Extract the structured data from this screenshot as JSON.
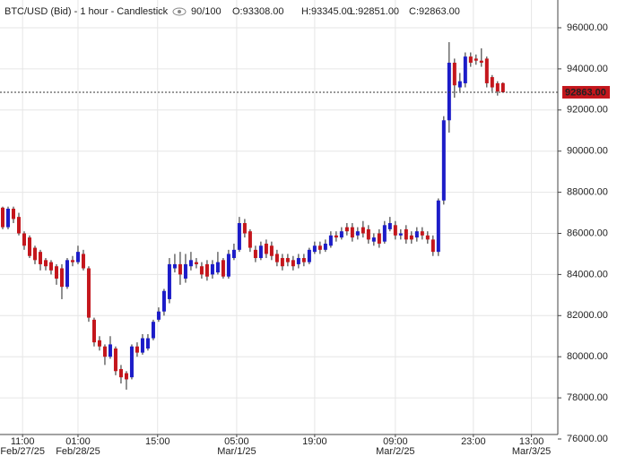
{
  "chart_data": {
    "type": "candlestick",
    "header": {
      "title": "BTC/USD (Bid) - 1 hour - Candlestick",
      "zoom": "90/100",
      "open": "O:93308.00",
      "high": "H:93345.00",
      "low": "L:92851.00",
      "close": "C:92863.00"
    },
    "x": [
      0,
      1,
      2,
      3,
      4,
      5,
      6,
      7,
      8,
      9,
      10,
      11,
      12,
      13,
      14,
      15,
      16,
      17,
      18,
      19,
      20,
      21,
      22,
      23,
      24,
      25,
      26,
      27,
      28,
      29,
      30,
      31,
      32,
      33,
      34,
      35,
      36,
      37,
      38,
      39,
      40,
      41,
      42,
      43,
      44,
      45,
      46,
      47,
      48,
      49,
      50,
      51,
      52,
      53,
      54,
      55,
      56,
      57,
      58,
      59,
      60,
      61,
      62,
      63,
      64,
      65,
      66,
      67,
      68,
      69,
      70,
      71,
      72,
      73,
      74,
      75,
      76,
      77,
      78,
      79,
      80,
      81,
      82,
      83,
      84,
      85,
      86,
      87,
      88,
      89,
      90,
      91,
      92,
      93
    ],
    "open": [
      87250,
      86300,
      87200,
      86800,
      86000,
      85800,
      85300,
      85100,
      84700,
      84600,
      84400,
      84300,
      83400,
      84700,
      84600,
      85000,
      84300,
      81800,
      80800,
      80500,
      80000,
      80400,
      79400,
      79200,
      79000,
      80500,
      80200,
      80400,
      80900,
      81800,
      82200,
      82800,
      84300,
      84500,
      83800,
      84400,
      84600,
      84400,
      84500,
      84000,
      84100,
      84700,
      83900,
      84800,
      85200,
      86500,
      86100,
      85200,
      84800,
      85500,
      85400,
      85000,
      84800,
      84800,
      84700,
      84500,
      84800,
      84600,
      85100,
      85400,
      85200,
      85400,
      85900,
      85800,
      86300,
      86300,
      85900,
      86300,
      86200,
      85600,
      86000,
      85600,
      86200,
      86400,
      85900,
      86200,
      85900,
      85800,
      86100,
      85900,
      85700,
      85100,
      87600,
      91500,
      94300,
      93100,
      93300,
      94600,
      94500,
      94400,
      94500,
      93600,
      93300,
      93308
    ],
    "high": [
      87300,
      87300,
      87300,
      87000,
      86100,
      85900,
      85400,
      85200,
      84800,
      84700,
      84500,
      84500,
      84800,
      84900,
      85400,
      85200,
      84400,
      81900,
      81000,
      80600,
      81000,
      80500,
      79600,
      79300,
      80600,
      80700,
      81100,
      81100,
      81800,
      82400,
      83300,
      84800,
      85000,
      85100,
      85000,
      85100,
      84800,
      84600,
      84700,
      84700,
      85100,
      84800,
      85200,
      85500,
      86800,
      86700,
      86200,
      85400,
      85600,
      85700,
      85600,
      85200,
      85000,
      85000,
      84900,
      85000,
      85000,
      85300,
      85600,
      85600,
      85700,
      86100,
      86100,
      86300,
      86500,
      86500,
      86300,
      86600,
      86400,
      86000,
      86200,
      86600,
      86800,
      86600,
      86200,
      86400,
      86100,
      86300,
      86300,
      86100,
      85900,
      87700,
      91700,
      95300,
      94500,
      93800,
      94800,
      94800,
      94700,
      95000,
      94600,
      93700,
      93400,
      93345
    ],
    "low": [
      86200,
      86200,
      86500,
      85900,
      85200,
      84800,
      84500,
      84200,
      84200,
      84000,
      83500,
      82800,
      83300,
      84400,
      84500,
      84200,
      81700,
      80500,
      80300,
      79600,
      79900,
      79100,
      78700,
      78400,
      78900,
      80000,
      80100,
      80300,
      80800,
      81700,
      82000,
      82600,
      84100,
      83500,
      83600,
      84200,
      84300,
      83800,
      83700,
      83800,
      84000,
      83800,
      83800,
      84700,
      85100,
      85800,
      85100,
      84600,
      84700,
      84800,
      84700,
      84400,
      84200,
      84400,
      84200,
      84300,
      84400,
      84500,
      85000,
      85000,
      85100,
      85300,
      85600,
      85700,
      85900,
      85600,
      85700,
      85800,
      85500,
      85400,
      85300,
      85500,
      86100,
      85700,
      85700,
      85500,
      85500,
      85600,
      85700,
      85500,
      84900,
      84900,
      87400,
      90900,
      92600,
      92900,
      93100,
      94100,
      94200,
      94100,
      93100,
      92900,
      92700,
      92851
    ],
    "close": [
      86300,
      87200,
      86700,
      86000,
      85400,
      84900,
      84700,
      84500,
      84400,
      84200,
      83800,
      83400,
      84700,
      84600,
      85100,
      84300,
      81900,
      80700,
      80500,
      80000,
      80600,
      79300,
      79000,
      78900,
      80500,
      80200,
      80900,
      80900,
      81700,
      82200,
      83200,
      84500,
      84500,
      84000,
      84500,
      84700,
      84500,
      84000,
      83900,
      84500,
      84600,
      83900,
      85000,
      85200,
      86500,
      86000,
      85300,
      84800,
      85400,
      85000,
      84900,
      84600,
      84400,
      84600,
      84400,
      84800,
      84600,
      85200,
      85400,
      85200,
      85500,
      85900,
      85800,
      86100,
      86100,
      85800,
      86100,
      86000,
      85700,
      85800,
      85500,
      86400,
      86500,
      85900,
      86000,
      85700,
      85700,
      86100,
      85900,
      85700,
      85100,
      87600,
      91500,
      94300,
      93200,
      93400,
      94600,
      94300,
      94400,
      94300,
      93300,
      93100,
      92900,
      92863
    ],
    "up_color": "#1c1cc8",
    "down_color": "#c4161c",
    "xlim": [
      -0.5,
      103.2
    ],
    "xticks": [
      {
        "value": 3.7,
        "label": "11:00",
        "date": "Feb/27/25"
      },
      {
        "value": 14,
        "label": "01:00",
        "date": "Feb/28/25"
      },
      {
        "value": 28.8,
        "label": "15:00"
      },
      {
        "value": 43.5,
        "label": "05:00",
        "date": "Mar/1/25"
      },
      {
        "value": 58,
        "label": "19:00"
      },
      {
        "value": 73,
        "label": "09:00",
        "date": "Mar/2/25"
      },
      {
        "value": 87.5,
        "label": "23:00"
      },
      {
        "value": 98.3,
        "label": "13:00",
        "date": "Mar/3/25"
      }
    ],
    "ylim": [
      76000,
      97350
    ],
    "yticks": [
      {
        "value": 76000,
        "label": "76000.00"
      },
      {
        "value": 78000,
        "label": "78000.00"
      },
      {
        "value": 80000,
        "label": "80000.00"
      },
      {
        "value": 82000,
        "label": "82000.00"
      },
      {
        "value": 84000,
        "label": "84000.00"
      },
      {
        "value": 86000,
        "label": "86000.00"
      },
      {
        "value": 88000,
        "label": "88000.00"
      },
      {
        "value": 90000,
        "label": "90000.00"
      },
      {
        "value": 92000,
        "label": "92000.00"
      },
      {
        "value": 94000,
        "label": "94000.00"
      },
      {
        "value": 96000,
        "label": "96000.00"
      }
    ],
    "last_price": {
      "value": 92863,
      "label": "92863.00"
    },
    "grid": true
  }
}
